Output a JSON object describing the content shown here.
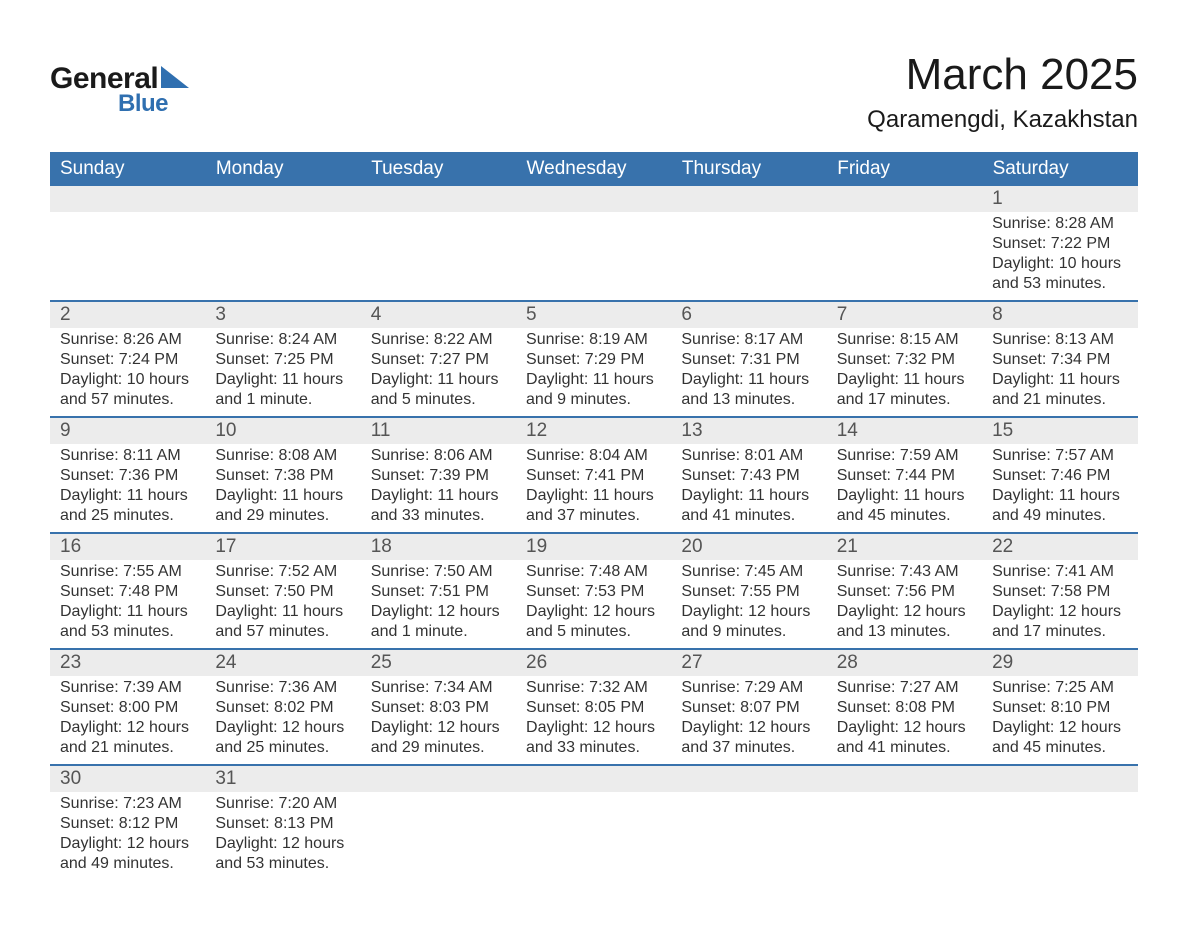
{
  "logo": {
    "text1": "General",
    "text2": "Blue",
    "text1_color": "#1a1a1a",
    "text2_color": "#2f6fb0",
    "triangle_color": "#2f6fb0"
  },
  "title": {
    "month": "March 2025",
    "location": "Qaramengdi, Kazakhstan",
    "text_color": "#1a1a1a"
  },
  "calendar": {
    "type": "table",
    "header_bg": "#3872ac",
    "header_text_color": "#ffffff",
    "daynum_bg": "#ececec",
    "daynum_color": "#555555",
    "body_text_color": "#333333",
    "row_border_color": "#3872ac",
    "background_color": "#ffffff",
    "header_fontsize": 19,
    "daynum_fontsize": 19,
    "body_fontsize": 16,
    "columns": [
      "Sunday",
      "Monday",
      "Tuesday",
      "Wednesday",
      "Thursday",
      "Friday",
      "Saturday"
    ],
    "weeks": [
      [
        null,
        null,
        null,
        null,
        null,
        null,
        {
          "day": "1",
          "sunrise": "Sunrise: 8:28 AM",
          "sunset": "Sunset: 7:22 PM",
          "daylight": "Daylight: 10 hours and 53 minutes."
        }
      ],
      [
        {
          "day": "2",
          "sunrise": "Sunrise: 8:26 AM",
          "sunset": "Sunset: 7:24 PM",
          "daylight": "Daylight: 10 hours and 57 minutes."
        },
        {
          "day": "3",
          "sunrise": "Sunrise: 8:24 AM",
          "sunset": "Sunset: 7:25 PM",
          "daylight": "Daylight: 11 hours and 1 minute."
        },
        {
          "day": "4",
          "sunrise": "Sunrise: 8:22 AM",
          "sunset": "Sunset: 7:27 PM",
          "daylight": "Daylight: 11 hours and 5 minutes."
        },
        {
          "day": "5",
          "sunrise": "Sunrise: 8:19 AM",
          "sunset": "Sunset: 7:29 PM",
          "daylight": "Daylight: 11 hours and 9 minutes."
        },
        {
          "day": "6",
          "sunrise": "Sunrise: 8:17 AM",
          "sunset": "Sunset: 7:31 PM",
          "daylight": "Daylight: 11 hours and 13 minutes."
        },
        {
          "day": "7",
          "sunrise": "Sunrise: 8:15 AM",
          "sunset": "Sunset: 7:32 PM",
          "daylight": "Daylight: 11 hours and 17 minutes."
        },
        {
          "day": "8",
          "sunrise": "Sunrise: 8:13 AM",
          "sunset": "Sunset: 7:34 PM",
          "daylight": "Daylight: 11 hours and 21 minutes."
        }
      ],
      [
        {
          "day": "9",
          "sunrise": "Sunrise: 8:11 AM",
          "sunset": "Sunset: 7:36 PM",
          "daylight": "Daylight: 11 hours and 25 minutes."
        },
        {
          "day": "10",
          "sunrise": "Sunrise: 8:08 AM",
          "sunset": "Sunset: 7:38 PM",
          "daylight": "Daylight: 11 hours and 29 minutes."
        },
        {
          "day": "11",
          "sunrise": "Sunrise: 8:06 AM",
          "sunset": "Sunset: 7:39 PM",
          "daylight": "Daylight: 11 hours and 33 minutes."
        },
        {
          "day": "12",
          "sunrise": "Sunrise: 8:04 AM",
          "sunset": "Sunset: 7:41 PM",
          "daylight": "Daylight: 11 hours and 37 minutes."
        },
        {
          "day": "13",
          "sunrise": "Sunrise: 8:01 AM",
          "sunset": "Sunset: 7:43 PM",
          "daylight": "Daylight: 11 hours and 41 minutes."
        },
        {
          "day": "14",
          "sunrise": "Sunrise: 7:59 AM",
          "sunset": "Sunset: 7:44 PM",
          "daylight": "Daylight: 11 hours and 45 minutes."
        },
        {
          "day": "15",
          "sunrise": "Sunrise: 7:57 AM",
          "sunset": "Sunset: 7:46 PM",
          "daylight": "Daylight: 11 hours and 49 minutes."
        }
      ],
      [
        {
          "day": "16",
          "sunrise": "Sunrise: 7:55 AM",
          "sunset": "Sunset: 7:48 PM",
          "daylight": "Daylight: 11 hours and 53 minutes."
        },
        {
          "day": "17",
          "sunrise": "Sunrise: 7:52 AM",
          "sunset": "Sunset: 7:50 PM",
          "daylight": "Daylight: 11 hours and 57 minutes."
        },
        {
          "day": "18",
          "sunrise": "Sunrise: 7:50 AM",
          "sunset": "Sunset: 7:51 PM",
          "daylight": "Daylight: 12 hours and 1 minute."
        },
        {
          "day": "19",
          "sunrise": "Sunrise: 7:48 AM",
          "sunset": "Sunset: 7:53 PM",
          "daylight": "Daylight: 12 hours and 5 minutes."
        },
        {
          "day": "20",
          "sunrise": "Sunrise: 7:45 AM",
          "sunset": "Sunset: 7:55 PM",
          "daylight": "Daylight: 12 hours and 9 minutes."
        },
        {
          "day": "21",
          "sunrise": "Sunrise: 7:43 AM",
          "sunset": "Sunset: 7:56 PM",
          "daylight": "Daylight: 12 hours and 13 minutes."
        },
        {
          "day": "22",
          "sunrise": "Sunrise: 7:41 AM",
          "sunset": "Sunset: 7:58 PM",
          "daylight": "Daylight: 12 hours and 17 minutes."
        }
      ],
      [
        {
          "day": "23",
          "sunrise": "Sunrise: 7:39 AM",
          "sunset": "Sunset: 8:00 PM",
          "daylight": "Daylight: 12 hours and 21 minutes."
        },
        {
          "day": "24",
          "sunrise": "Sunrise: 7:36 AM",
          "sunset": "Sunset: 8:02 PM",
          "daylight": "Daylight: 12 hours and 25 minutes."
        },
        {
          "day": "25",
          "sunrise": "Sunrise: 7:34 AM",
          "sunset": "Sunset: 8:03 PM",
          "daylight": "Daylight: 12 hours and 29 minutes."
        },
        {
          "day": "26",
          "sunrise": "Sunrise: 7:32 AM",
          "sunset": "Sunset: 8:05 PM",
          "daylight": "Daylight: 12 hours and 33 minutes."
        },
        {
          "day": "27",
          "sunrise": "Sunrise: 7:29 AM",
          "sunset": "Sunset: 8:07 PM",
          "daylight": "Daylight: 12 hours and 37 minutes."
        },
        {
          "day": "28",
          "sunrise": "Sunrise: 7:27 AM",
          "sunset": "Sunset: 8:08 PM",
          "daylight": "Daylight: 12 hours and 41 minutes."
        },
        {
          "day": "29",
          "sunrise": "Sunrise: 7:25 AM",
          "sunset": "Sunset: 8:10 PM",
          "daylight": "Daylight: 12 hours and 45 minutes."
        }
      ],
      [
        {
          "day": "30",
          "sunrise": "Sunrise: 7:23 AM",
          "sunset": "Sunset: 8:12 PM",
          "daylight": "Daylight: 12 hours and 49 minutes."
        },
        {
          "day": "31",
          "sunrise": "Sunrise: 7:20 AM",
          "sunset": "Sunset: 8:13 PM",
          "daylight": "Daylight: 12 hours and 53 minutes."
        },
        null,
        null,
        null,
        null,
        null
      ]
    ]
  }
}
